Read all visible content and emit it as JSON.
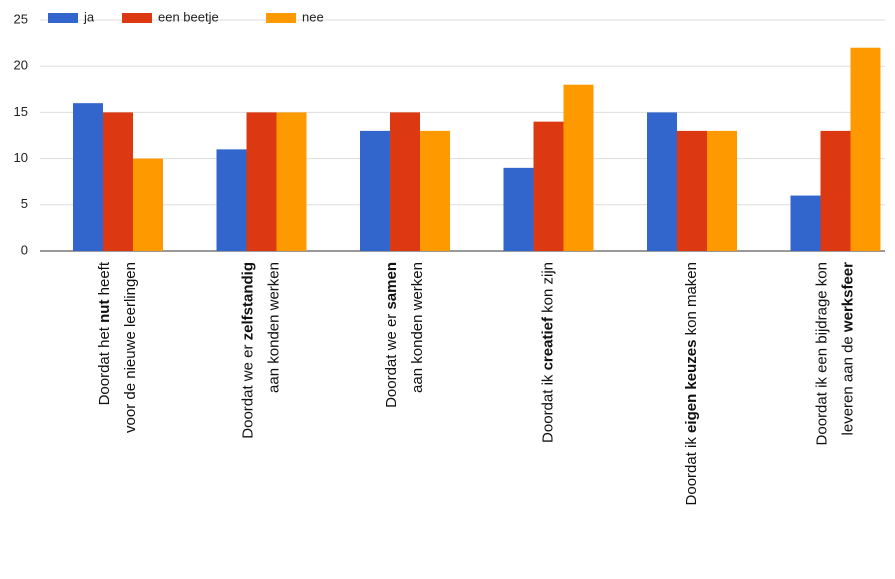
{
  "chart_data": {
    "type": "bar",
    "categories": [
      [
        [
          "Doordat het ",
          "nut",
          " heeft"
        ],
        [
          "voor de nieuwe leerlingen"
        ]
      ],
      [
        [
          "Doordat we er ",
          "zelfstandig"
        ],
        [
          "aan konden werken"
        ]
      ],
      [
        [
          "Doordat we er ",
          "samen"
        ],
        [
          "aan konden werken"
        ]
      ],
      [
        [
          "Doordat ik ",
          "creatief",
          " kon zijn"
        ]
      ],
      [
        [
          "Doordat ik ",
          "eigen keuzes",
          " kon maken"
        ]
      ],
      [
        [
          "Doordat ik een bijdrage kon"
        ],
        [
          "leveren aan de ",
          "werksfeer"
        ]
      ]
    ],
    "series": [
      {
        "name": "ja",
        "color": "#3366cc",
        "values": [
          16,
          11,
          13,
          9,
          15,
          6
        ]
      },
      {
        "name": "een beetje",
        "color": "#dc3912",
        "values": [
          15,
          15,
          15,
          14,
          13,
          13
        ]
      },
      {
        "name": "nee",
        "color": "#ff9900",
        "values": [
          10,
          15,
          13,
          18,
          13,
          22
        ]
      }
    ],
    "ylim": [
      0,
      25
    ],
    "yticks": [
      0,
      5,
      10,
      15,
      20,
      25
    ],
    "grid": true,
    "legend": "top"
  }
}
